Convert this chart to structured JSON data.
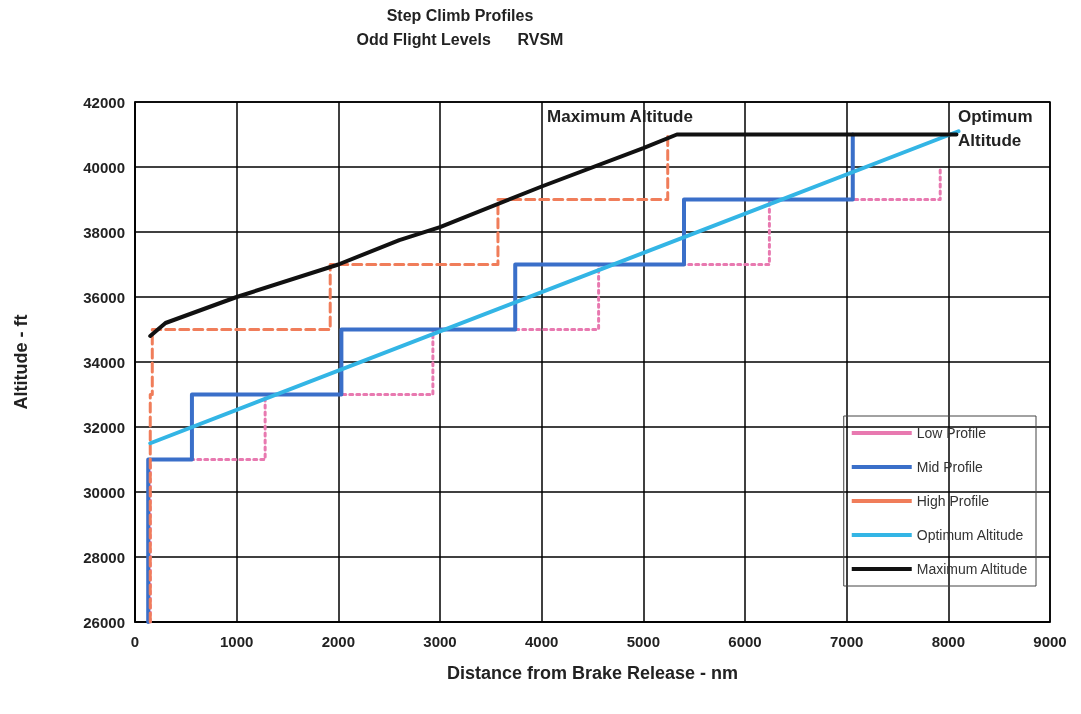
{
  "chart_data": {
    "type": "line",
    "title": "Step Climb Profiles",
    "subtitle": "Odd Flight Levels      RVSM",
    "xlabel": "Distance from Brake Release - nm",
    "ylabel": "Altitude - ft",
    "xlim": [
      0,
      9000
    ],
    "xticks": [
      0,
      1000,
      2000,
      3000,
      4000,
      5000,
      6000,
      7000,
      8000,
      9000
    ],
    "ylim": [
      26000,
      42000
    ],
    "yticks": [
      26000,
      28000,
      30000,
      32000,
      34000,
      36000,
      38000,
      40000,
      42000
    ],
    "grid": true,
    "legend": "bottom right",
    "marker": "none",
    "series": [
      {
        "name": "Low Profile",
        "color": "#e879b0",
        "line_style": "dotted",
        "x": [
          150,
          150,
          1280,
          1280,
          2930,
          2930,
          4560,
          4560,
          6240,
          6240,
          7920,
          7920
        ],
        "values": [
          26000,
          31000,
          31000,
          33000,
          33000,
          35000,
          35000,
          37000,
          37000,
          39000,
          39000,
          40000
        ]
      },
      {
        "name": "Mid Profile",
        "color": "#3a6fc9",
        "line_style": "solid",
        "x": [
          130,
          130,
          560,
          560,
          2030,
          2030,
          3740,
          3740,
          5400,
          5400,
          7060,
          7060
        ],
        "values": [
          26000,
          31000,
          31000,
          33000,
          33000,
          35000,
          35000,
          37000,
          37000,
          39000,
          39000,
          41000
        ]
      },
      {
        "name": "High Profile",
        "color": "#f07d5a",
        "line_style": "dashed",
        "x": [
          150,
          150,
          170,
          170,
          1920,
          1920,
          3570,
          3570,
          5240,
          5240
        ],
        "values": [
          26000,
          33000,
          33000,
          35000,
          35000,
          37000,
          37000,
          39000,
          39000,
          41000
        ]
      },
      {
        "name": "Optimum Altitude",
        "color": "#33b5e5",
        "line_style": "solid",
        "x": [
          150,
          8100
        ],
        "values": [
          31500,
          41100
        ]
      },
      {
        "name": "Maximum Altitude",
        "color": "#111111",
        "line_style": "solid",
        "x": [
          150,
          300,
          1000,
          2000,
          2600,
          3000,
          4000,
          5000,
          5330,
          8080
        ],
        "values": [
          34800,
          35200,
          36000,
          37000,
          37750,
          38150,
          39400,
          40580,
          41000,
          41000
        ]
      }
    ],
    "annotations": [
      "Maximum Altitude",
      "Optimum Altitude"
    ]
  }
}
